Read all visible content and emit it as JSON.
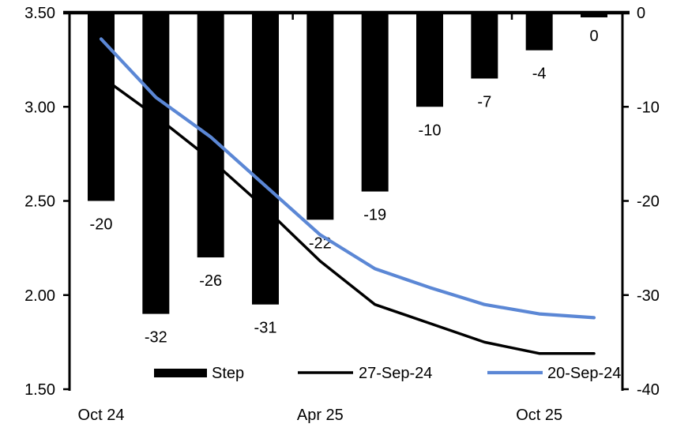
{
  "chart_data": {
    "type": "combo",
    "title": "",
    "n_categories": 10,
    "grid": false,
    "background": "#ffffff",
    "text_color": "#000000",
    "x_axis": {
      "tick_labels": [
        {
          "text": "Oct 24",
          "index": 0
        },
        {
          "text": "Apr 25",
          "index": 4
        },
        {
          "text": "Oct 25",
          "index": 8
        }
      ]
    },
    "left_axis": {
      "min": 1.5,
      "max": 3.5,
      "tick_labels": [
        "3.50",
        "3.00",
        "2.50",
        "2.00",
        "1.50"
      ]
    },
    "right_axis": {
      "min": -40,
      "max": 0,
      "tick_labels": [
        "0",
        "-10",
        "-20",
        "-30",
        "-40"
      ]
    },
    "bar_series": {
      "name": "Step",
      "axis": "right",
      "color": "#000000",
      "values": [
        -20,
        -32,
        -26,
        -31,
        -22,
        -19,
        -10,
        -7,
        -4,
        0
      ],
      "data_labels": [
        "-20",
        "-32",
        "-26",
        "-31",
        "-22",
        "-19",
        "-10",
        "-7",
        "-4",
        "0"
      ]
    },
    "line_series": [
      {
        "name": "27-Sep-24",
        "axis": "left",
        "color": "#000000",
        "width": 3.5,
        "values": [
          3.16,
          2.95,
          2.72,
          2.46,
          2.18,
          1.95,
          1.85,
          1.75,
          1.69,
          1.69
        ]
      },
      {
        "name": "20-Sep-24",
        "axis": "left",
        "color": "#5B87D5",
        "width": 4.2,
        "values": [
          3.36,
          3.05,
          2.84,
          2.58,
          2.32,
          2.14,
          2.04,
          1.95,
          1.9,
          1.88
        ]
      }
    ],
    "legend": {
      "position": "bottom",
      "items": [
        {
          "label": "Step",
          "marker": "bar",
          "color": "#000000"
        },
        {
          "label": "27-Sep-24",
          "marker": "line",
          "color": "#000000"
        },
        {
          "label": "20-Sep-24",
          "marker": "line",
          "color": "#5B87D5"
        }
      ]
    }
  }
}
